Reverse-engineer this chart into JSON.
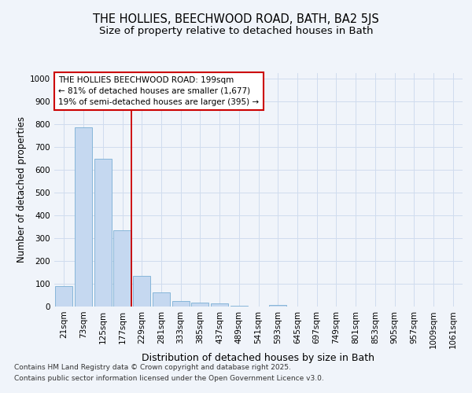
{
  "title1": "THE HOLLIES, BEECHWOOD ROAD, BATH, BA2 5JS",
  "title2": "Size of property relative to detached houses in Bath",
  "xlabel": "Distribution of detached houses by size in Bath",
  "ylabel": "Number of detached properties",
  "categories": [
    "21sqm",
    "73sqm",
    "125sqm",
    "177sqm",
    "229sqm",
    "281sqm",
    "333sqm",
    "385sqm",
    "437sqm",
    "489sqm",
    "541sqm",
    "593sqm",
    "645sqm",
    "697sqm",
    "749sqm",
    "801sqm",
    "853sqm",
    "905sqm",
    "957sqm",
    "1009sqm",
    "1061sqm"
  ],
  "values": [
    88,
    785,
    648,
    335,
    135,
    62,
    25,
    17,
    13,
    5,
    0,
    7,
    0,
    0,
    0,
    0,
    0,
    0,
    0,
    0,
    0
  ],
  "bar_color": "#c5d8f0",
  "bar_edge_color": "#7aafd4",
  "vline_color": "#cc0000",
  "vline_x_index": 3,
  "annotation_line1": "THE HOLLIES BEECHWOOD ROAD: 199sqm",
  "annotation_line2": "← 81% of detached houses are smaller (1,677)",
  "annotation_line3": "19% of semi-detached houses are larger (395) →",
  "annotation_box_facecolor": "#ffffff",
  "annotation_box_edgecolor": "#cc0000",
  "grid_color": "#d0dcee",
  "bg_color": "#f0f4fa",
  "plot_bg_color": "#f0f4fa",
  "ylim": [
    0,
    1025
  ],
  "yticks": [
    0,
    100,
    200,
    300,
    400,
    500,
    600,
    700,
    800,
    900,
    1000
  ],
  "footer_line1": "Contains HM Land Registry data © Crown copyright and database right 2025.",
  "footer_line2": "Contains public sector information licensed under the Open Government Licence v3.0.",
  "title1_fontsize": 10.5,
  "title2_fontsize": 9.5,
  "xlabel_fontsize": 9,
  "ylabel_fontsize": 8.5,
  "tick_fontsize": 7.5,
  "annotation_fontsize": 7.5,
  "footer_fontsize": 6.5
}
